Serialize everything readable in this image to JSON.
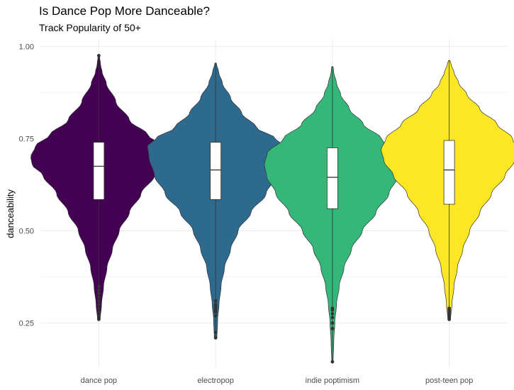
{
  "chart_data": {
    "type": "violin",
    "title": "Is Dance Pop More Danceable?",
    "subtitle": "Track Popularity of 50+",
    "xlabel": "",
    "ylabel": "danceability",
    "ylim": [
      0.13,
      1.02
    ],
    "yticks": [
      0.25,
      0.5,
      0.75,
      1.0
    ],
    "ytick_labels": [
      "0.25",
      "0.50",
      "0.75",
      "1.00"
    ],
    "grid": true,
    "legend": "none",
    "categories": [
      "dance pop",
      "electropop",
      "indie poptimism",
      "post-teen pop"
    ],
    "series": [
      {
        "category": "dance pop",
        "color": "#440154",
        "box": {
          "q1": 0.585,
          "median": 0.675,
          "q3": 0.74
        },
        "range": [
          0.26,
          0.975
        ],
        "outliers": [
          0.26,
          0.27,
          0.28,
          0.29,
          0.3,
          0.31,
          0.32,
          0.33,
          0.34,
          0.35,
          0.975
        ],
        "density": [
          [
            0.26,
            0.02
          ],
          [
            0.3,
            0.04
          ],
          [
            0.35,
            0.07
          ],
          [
            0.4,
            0.12
          ],
          [
            0.45,
            0.2
          ],
          [
            0.5,
            0.3
          ],
          [
            0.55,
            0.45
          ],
          [
            0.6,
            0.62
          ],
          [
            0.65,
            0.82
          ],
          [
            0.68,
            0.98
          ],
          [
            0.7,
            1.0
          ],
          [
            0.73,
            0.93
          ],
          [
            0.76,
            0.72
          ],
          [
            0.8,
            0.45
          ],
          [
            0.85,
            0.25
          ],
          [
            0.9,
            0.11
          ],
          [
            0.93,
            0.05
          ],
          [
            0.95,
            0.025
          ],
          [
            0.975,
            0.01
          ]
        ]
      },
      {
        "category": "electropop",
        "color": "#2d6a8e",
        "box": {
          "q1": 0.585,
          "median": 0.665,
          "q3": 0.74
        },
        "range": [
          0.21,
          0.955
        ],
        "outliers": [
          0.21,
          0.225,
          0.27,
          0.28,
          0.285,
          0.29,
          0.295,
          0.3,
          0.31
        ],
        "density": [
          [
            0.21,
            0.02
          ],
          [
            0.26,
            0.03
          ],
          [
            0.3,
            0.05
          ],
          [
            0.35,
            0.08
          ],
          [
            0.4,
            0.13
          ],
          [
            0.45,
            0.22
          ],
          [
            0.5,
            0.33
          ],
          [
            0.55,
            0.52
          ],
          [
            0.6,
            0.74
          ],
          [
            0.65,
            0.9
          ],
          [
            0.7,
            0.98
          ],
          [
            0.73,
            1.0
          ],
          [
            0.75,
            0.88
          ],
          [
            0.78,
            0.6
          ],
          [
            0.82,
            0.38
          ],
          [
            0.86,
            0.22
          ],
          [
            0.9,
            0.1
          ],
          [
            0.93,
            0.045
          ],
          [
            0.955,
            0.01
          ]
        ]
      },
      {
        "category": "indie poptimism",
        "color": "#35b779",
        "box": {
          "q1": 0.56,
          "median": 0.645,
          "q3": 0.725
        },
        "range": [
          0.145,
          0.945
        ],
        "outliers": [
          0.145,
          0.235,
          0.25,
          0.265,
          0.275,
          0.285,
          0.29
        ],
        "density": [
          [
            0.145,
            0.01
          ],
          [
            0.2,
            0.02
          ],
          [
            0.25,
            0.035
          ],
          [
            0.3,
            0.06
          ],
          [
            0.35,
            0.1
          ],
          [
            0.4,
            0.17
          ],
          [
            0.45,
            0.28
          ],
          [
            0.5,
            0.44
          ],
          [
            0.55,
            0.64
          ],
          [
            0.6,
            0.83
          ],
          [
            0.65,
            0.97
          ],
          [
            0.68,
            1.0
          ],
          [
            0.71,
            0.96
          ],
          [
            0.75,
            0.72
          ],
          [
            0.79,
            0.45
          ],
          [
            0.83,
            0.25
          ],
          [
            0.87,
            0.12
          ],
          [
            0.9,
            0.06
          ],
          [
            0.93,
            0.02
          ],
          [
            0.945,
            0.01
          ]
        ]
      },
      {
        "category": "post-teen pop",
        "color": "#fde725",
        "box": {
          "q1": 0.572,
          "median": 0.665,
          "q3": 0.745
        },
        "range": [
          0.26,
          0.962
        ],
        "outliers": [
          0.26,
          0.265,
          0.27,
          0.275,
          0.28,
          0.285,
          0.29
        ],
        "density": [
          [
            0.26,
            0.02
          ],
          [
            0.3,
            0.04
          ],
          [
            0.35,
            0.07
          ],
          [
            0.4,
            0.12
          ],
          [
            0.45,
            0.2
          ],
          [
            0.5,
            0.3
          ],
          [
            0.55,
            0.45
          ],
          [
            0.6,
            0.62
          ],
          [
            0.65,
            0.82
          ],
          [
            0.69,
            0.96
          ],
          [
            0.72,
            1.0
          ],
          [
            0.75,
            0.93
          ],
          [
            0.79,
            0.7
          ],
          [
            0.83,
            0.45
          ],
          [
            0.87,
            0.26
          ],
          [
            0.9,
            0.14
          ],
          [
            0.93,
            0.07
          ],
          [
            0.95,
            0.03
          ],
          [
            0.962,
            0.01
          ]
        ]
      }
    ]
  }
}
